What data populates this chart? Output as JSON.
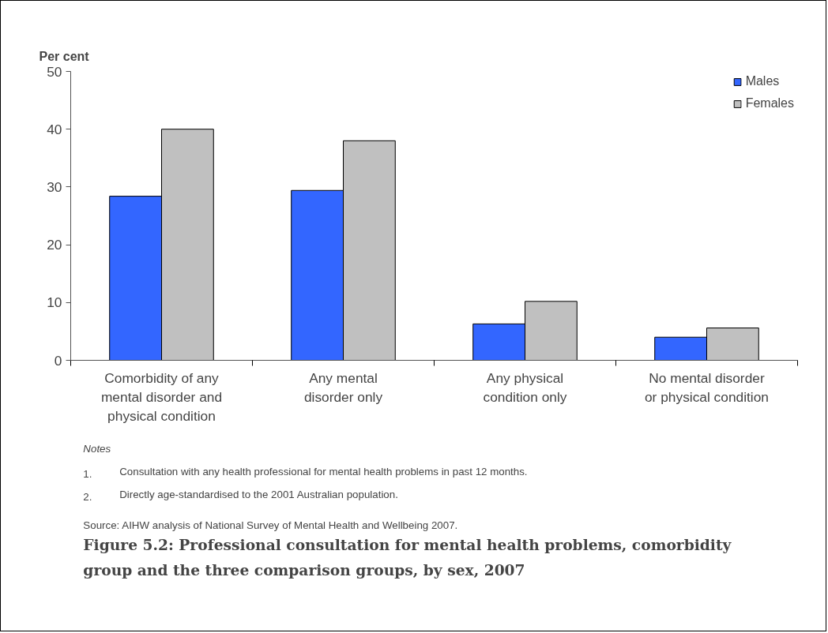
{
  "chart_data": {
    "type": "bar",
    "title": "Figure 5.2: Professional consultation for mental health problems, comorbidity group and the three comparison groups, by sex, 2007",
    "ylabel": "Per cent",
    "categories": [
      "Comorbidity of any\nmental disorder and\nphysical condition",
      "Any mental\ndisorder only",
      "Any physical\ncondition only",
      "No mental disorder\nor physical condition"
    ],
    "series": [
      {
        "name": "Males",
        "color": "#3366ff",
        "values": [
          28.4,
          29.4,
          6.3,
          4.0
        ]
      },
      {
        "name": "Females",
        "color": "#c0c0c0",
        "values": [
          40.0,
          38.0,
          10.2,
          5.6
        ]
      }
    ],
    "ylim": [
      0,
      50
    ],
    "yticks": [
      0,
      10,
      20,
      30,
      40,
      50
    ],
    "grid": false,
    "legend": "top right",
    "annotations": [
      "Notes",
      "1. Consultation with any health professional for mental health problems in past 12 months.",
      "2. Directly age-standardised to the 2001 Australian population.",
      "Source: AIHW analysis of National Survey of Mental Health and Wellbeing 2007."
    ]
  }
}
